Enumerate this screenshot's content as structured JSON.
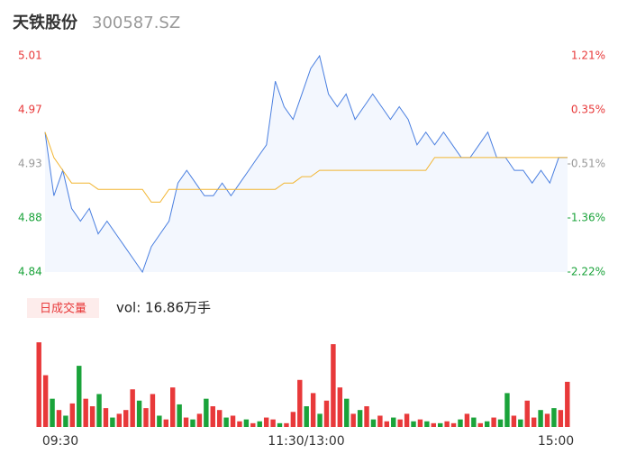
{
  "header": {
    "name": "天铁股份",
    "code": "300587.SZ"
  },
  "chart_data": [
    {
      "type": "line",
      "ylim": [
        4.84,
        5.01
      ],
      "yticks": [
        4.84,
        {
          "value": 4.8825,
          "label": "4.88"
        },
        {
          "value": 4.925,
          "label": "4.93"
        },
        {
          "value": 4.9675,
          "label": "4.97"
        },
        5.01
      ],
      "y2lim": [
        -2.22,
        1.21
      ],
      "y2ticks": [
        {
          "value": -2.22,
          "label": "-2.22%"
        },
        {
          "value": -1.3625,
          "label": "-1.36%"
        },
        {
          "value": -0.505,
          "label": "-0.51%"
        },
        {
          "value": 0.3525,
          "label": "0.35%"
        },
        {
          "value": 1.21,
          "label": "1.21%"
        }
      ],
      "xticks": [
        "09:30",
        "11:30/13:00",
        "15:00"
      ],
      "series": [
        {
          "name": "price",
          "color": "#4a7fe0",
          "values": [
            4.95,
            4.9,
            4.92,
            4.89,
            4.88,
            4.89,
            4.87,
            4.88,
            4.87,
            4.86,
            4.85,
            4.84,
            4.86,
            4.87,
            4.88,
            4.91,
            4.92,
            4.91,
            4.9,
            4.9,
            4.91,
            4.9,
            4.91,
            4.92,
            4.93,
            4.94,
            4.99,
            4.97,
            4.96,
            4.98,
            5.0,
            5.01,
            4.98,
            4.97,
            4.98,
            4.96,
            4.97,
            4.98,
            4.97,
            4.96,
            4.97,
            4.96,
            4.94,
            4.95,
            4.94,
            4.95,
            4.94,
            4.93,
            4.93,
            4.94,
            4.95,
            4.93,
            4.93,
            4.92,
            4.92,
            4.91,
            4.92,
            4.91,
            4.93,
            4.93
          ]
        },
        {
          "name": "average",
          "color": "#f2b531",
          "values": [
            4.95,
            4.93,
            4.92,
            4.91,
            4.91,
            4.91,
            4.905,
            4.905,
            4.905,
            4.905,
            4.905,
            4.905,
            4.895,
            4.895,
            4.905,
            4.905,
            4.905,
            4.905,
            4.905,
            4.905,
            4.905,
            4.905,
            4.905,
            4.905,
            4.905,
            4.905,
            4.905,
            4.91,
            4.91,
            4.915,
            4.915,
            4.92,
            4.92,
            4.92,
            4.92,
            4.92,
            4.92,
            4.92,
            4.92,
            4.92,
            4.92,
            4.92,
            4.92,
            4.92,
            4.93,
            4.93,
            4.93,
            4.93,
            4.93,
            4.93,
            4.93,
            4.93,
            4.93,
            4.93,
            4.93,
            4.93,
            4.93,
            4.93,
            4.93,
            4.93
          ]
        }
      ]
    },
    {
      "type": "bar",
      "label": "日成交量",
      "summary": "vol: 16.86万手",
      "up_color": "#e8393a",
      "down_color": "#1aa33a",
      "values": [
        90,
        55,
        30,
        18,
        12,
        25,
        65,
        30,
        22,
        35,
        20,
        10,
        14,
        18,
        40,
        28,
        20,
        35,
        12,
        8,
        42,
        24,
        10,
        8,
        14,
        30,
        22,
        18,
        10,
        12,
        6,
        8,
        4,
        6,
        10,
        8,
        4,
        4,
        16,
        50,
        22,
        36,
        14,
        28,
        88,
        42,
        30,
        14,
        18,
        22,
        8,
        12,
        6,
        10,
        8,
        14,
        6,
        8,
        6,
        4,
        4,
        6,
        4,
        8,
        14,
        10,
        4,
        6,
        10,
        8,
        36,
        12,
        8,
        28,
        10,
        18,
        14,
        20,
        18,
        48
      ],
      "up": [
        true,
        true,
        false,
        true,
        false,
        true,
        false,
        true,
        true,
        false,
        true,
        false,
        true,
        true,
        true,
        false,
        true,
        true,
        false,
        true,
        true,
        false,
        true,
        false,
        true,
        false,
        true,
        true,
        false,
        true,
        true,
        false,
        true,
        false,
        true,
        true,
        false,
        true,
        true,
        true,
        false,
        true,
        false,
        true,
        true,
        true,
        false,
        true,
        false,
        true,
        false,
        true,
        true,
        false,
        true,
        true,
        false,
        true,
        false,
        true,
        false,
        true,
        true,
        false,
        true,
        false,
        true,
        false,
        true,
        false,
        false,
        true,
        false,
        true,
        true,
        false,
        true,
        false,
        true,
        true
      ]
    }
  ]
}
